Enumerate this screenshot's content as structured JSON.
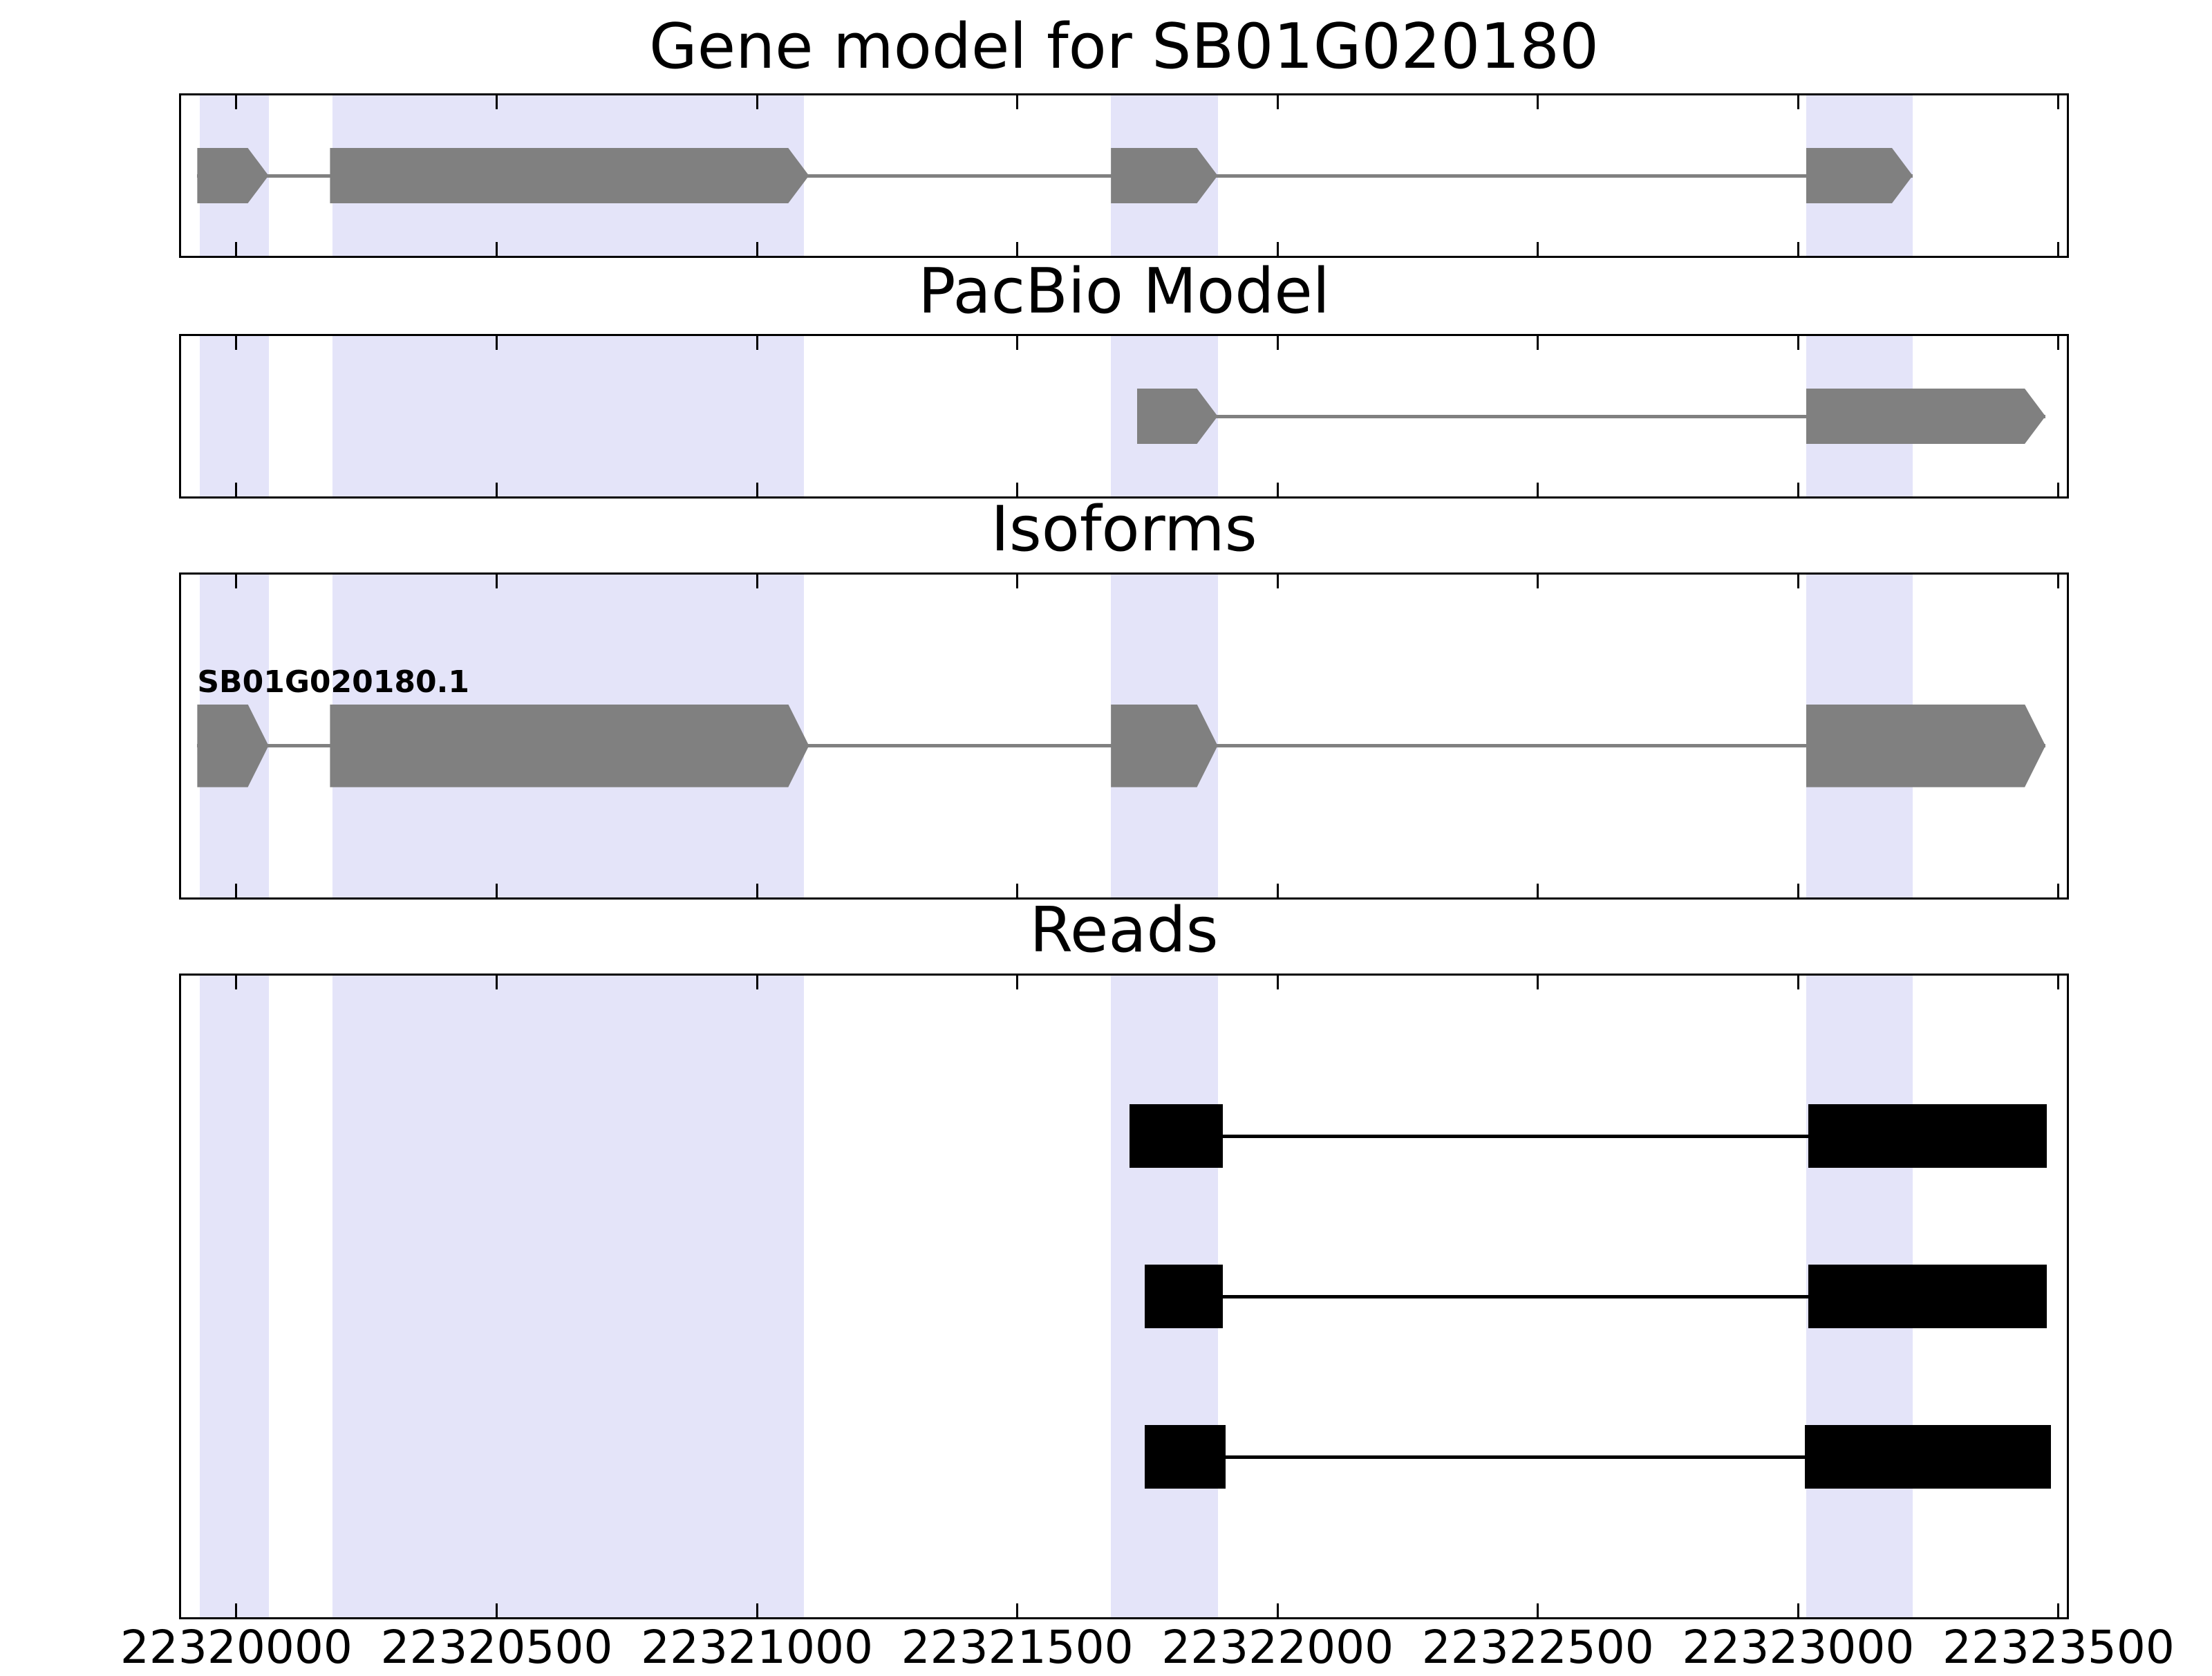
{
  "colors": {
    "highlight": "#e4e4f9",
    "model_gray": "#808080",
    "read_black": "#000000",
    "border": "#000000",
    "background": "#ffffff"
  },
  "chart_data": {
    "type": "gene-model-browser",
    "xlim": [
      22319890,
      22323520
    ],
    "x_ticks": [
      22320000,
      22320500,
      22321000,
      22321500,
      22322000,
      22322500,
      22323000,
      22323500
    ],
    "x_tick_labels": [
      "22320000",
      "22320500",
      "22321000",
      "22321500",
      "22322000",
      "22322500",
      "22323000",
      "22323500"
    ],
    "highlight_regions": [
      [
        22319930,
        22320062
      ],
      [
        22320185,
        22321090
      ],
      [
        22321680,
        22321885
      ],
      [
        22323015,
        22323220
      ]
    ],
    "panels": [
      {
        "title": "Gene model for SB01G020180",
        "features": [
          {
            "type": "transcript",
            "arrow": true,
            "color": "#808080",
            "exons": [
              [
                22319925,
                22320062
              ],
              [
                22320180,
                22321100
              ],
              [
                22321680,
                22321885
              ],
              [
                22323015,
                22323220
              ]
            ]
          }
        ]
      },
      {
        "title": "PacBio Model",
        "features": [
          {
            "type": "transcript",
            "arrow": true,
            "color": "#808080",
            "exons": [
              [
                22321730,
                22321885
              ],
              [
                22323015,
                22323475
              ]
            ]
          }
        ]
      },
      {
        "title": "Isoforms",
        "features": [
          {
            "type": "transcript",
            "label": "SB01G020180.1",
            "arrow": true,
            "color": "#808080",
            "exons": [
              [
                22319925,
                22320062
              ],
              [
                22320180,
                22321100
              ],
              [
                22321680,
                22321885
              ],
              [
                22323015,
                22323475
              ]
            ]
          }
        ]
      },
      {
        "title": "Reads",
        "features": [
          {
            "type": "read",
            "color": "#000000",
            "exons": [
              [
                22321715,
                22321895
              ],
              [
                22323020,
                22323478
              ]
            ]
          },
          {
            "type": "read",
            "color": "#000000",
            "exons": [
              [
                22321745,
                22321895
              ],
              [
                22323020,
                22323478
              ]
            ]
          },
          {
            "type": "read",
            "color": "#000000",
            "exons": [
              [
                22321745,
                22321900
              ],
              [
                22323013,
                22323485
              ]
            ]
          }
        ]
      }
    ]
  }
}
